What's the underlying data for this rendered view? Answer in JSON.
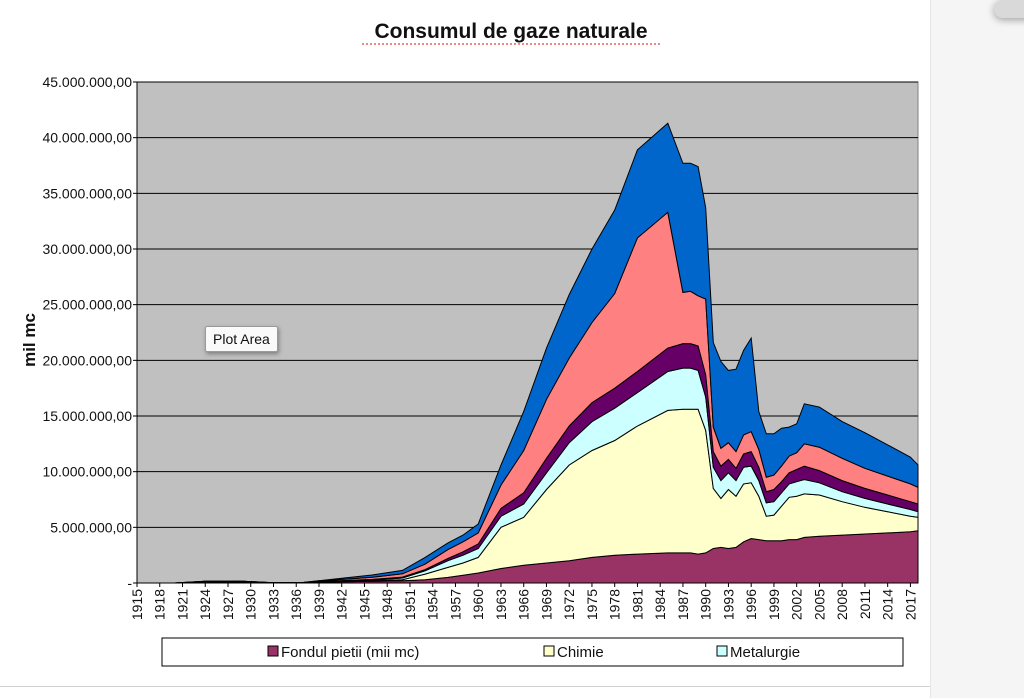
{
  "chart_data": {
    "type": "area",
    "stacked": true,
    "title": "Consumul de gaze naturale",
    "xlabel": "",
    "ylabel": "mil mc",
    "ylim": [
      0,
      45000000
    ],
    "yticks": [
      0,
      5000000,
      10000000,
      15000000,
      20000000,
      25000000,
      30000000,
      35000000,
      40000000,
      45000000
    ],
    "ytick_labels": [
      "-",
      "5.000.000,00",
      "10.000.000,00",
      "15.000.000,00",
      "20.000.000,00",
      "25.000.000,00",
      "30.000.000,00",
      "35.000.000,00",
      "40.000.000,00",
      "45.000.000,00"
    ],
    "xtick_labels": [
      "1915",
      "1918",
      "1921",
      "1924",
      "1927",
      "1930",
      "1933",
      "1936",
      "1939",
      "1942",
      "1945",
      "1948",
      "1951",
      "1954",
      "1957",
      "1960",
      "1963",
      "1966",
      "1969",
      "1972",
      "1975",
      "1978",
      "1981",
      "1984",
      "1987",
      "1990",
      "1993",
      "1996",
      "1999",
      "2002",
      "2005",
      "2008",
      "2011",
      "2014",
      "2017"
    ],
    "grid": true,
    "legend_position": "bottom",
    "plot_background": "#c0c0c0",
    "x": [
      1915,
      1920,
      1924,
      1929,
      1933,
      1937,
      1939,
      1942,
      1946,
      1950,
      1953,
      1956,
      1958,
      1960,
      1963,
      1966,
      1969,
      1972,
      1975,
      1978,
      1981,
      1985,
      1987,
      1988,
      1989,
      1990,
      1991,
      1992,
      1993,
      1994,
      1995,
      1996,
      1997,
      1998,
      1999,
      2000,
      2001,
      2002,
      2003,
      2005,
      2008,
      2011,
      2014,
      2017,
      2018
    ],
    "series": [
      {
        "name": "Fondul pietii (mii mc)",
        "color": "#993366",
        "values": [
          0,
          0,
          100000,
          100000,
          20000,
          30000,
          80000,
          120000,
          150000,
          200000,
          300000,
          500000,
          700000,
          900000,
          1300000,
          1600000,
          1800000,
          2000000,
          2300000,
          2500000,
          2600000,
          2700000,
          2700000,
          2700000,
          2600000,
          2700000,
          3100000,
          3200000,
          3100000,
          3200000,
          3700000,
          4000000,
          3900000,
          3800000,
          3800000,
          3800000,
          3900000,
          3900000,
          4100000,
          4200000,
          4300000,
          4400000,
          4500000,
          4600000,
          4700000
        ]
      },
      {
        "name": "Chimie",
        "color": "#ffffcc",
        "values": [
          0,
          0,
          0,
          0,
          0,
          0,
          10000,
          20000,
          50000,
          100000,
          500000,
          900000,
          1100000,
          1400000,
          3700000,
          4300000,
          6600000,
          8600000,
          9600000,
          10300000,
          11500000,
          12800000,
          12900000,
          12900000,
          13000000,
          11000000,
          5400000,
          4400000,
          5300000,
          4600000,
          5200000,
          5000000,
          3900000,
          2200000,
          2300000,
          3100000,
          3800000,
          3900000,
          3900000,
          3700000,
          3000000,
          2400000,
          1900000,
          1400000,
          1200000
        ]
      },
      {
        "name": "Metalurgie",
        "color": "#ccffff",
        "values": [
          0,
          0,
          0,
          0,
          0,
          0,
          20000,
          30000,
          60000,
          150000,
          300000,
          600000,
          700000,
          800000,
          1000000,
          1200000,
          1500000,
          2000000,
          2600000,
          2900000,
          3000000,
          3500000,
          3700000,
          3700000,
          3500000,
          3000000,
          1900000,
          1600000,
          1500000,
          1400000,
          1500000,
          1500000,
          1400000,
          1200000,
          1200000,
          1200000,
          1200000,
          1300000,
          1300000,
          1100000,
          900000,
          800000,
          700000,
          600000,
          500000
        ]
      },
      {
        "name": "",
        "color": "#660066",
        "values": [
          0,
          0,
          50000,
          50000,
          10000,
          20000,
          40000,
          50000,
          60000,
          80000,
          100000,
          200000,
          300000,
          400000,
          700000,
          1000000,
          1300000,
          1500000,
          1700000,
          1800000,
          1900000,
          2100000,
          2200000,
          2200000,
          2200000,
          2000000,
          1400000,
          1300000,
          1200000,
          1100000,
          1200000,
          1300000,
          1200000,
          1000000,
          1100000,
          1000000,
          1000000,
          1100000,
          1200000,
          1100000,
          1000000,
          900000,
          800000,
          700000,
          700000
        ]
      },
      {
        "name": "",
        "color": "#ff8080",
        "values": [
          0,
          0,
          0,
          0,
          0,
          0,
          50000,
          100000,
          200000,
          300000,
          500000,
          800000,
          900000,
          1000000,
          2100000,
          3800000,
          5300000,
          6100000,
          7200000,
          8500000,
          12000000,
          12200000,
          4600000,
          4700000,
          4500000,
          6800000,
          2200000,
          1600000,
          1500000,
          1500000,
          1700000,
          1800000,
          1600000,
          1300000,
          1300000,
          1400000,
          1500000,
          1500000,
          2000000,
          2100000,
          2000000,
          1800000,
          1700000,
          1600000,
          1500000
        ]
      },
      {
        "name": "",
        "color": "#0066cc",
        "values": [
          0,
          0,
          0,
          0,
          0,
          0,
          0,
          100000,
          200000,
          300000,
          600000,
          600000,
          600000,
          800000,
          1800000,
          3500000,
          4600000,
          5700000,
          6600000,
          7500000,
          7900000,
          8000000,
          11600000,
          11500000,
          11600000,
          8200000,
          7600000,
          7800000,
          6500000,
          7400000,
          7600000,
          8400000,
          3400000,
          3900000,
          3700000,
          3400000,
          2600000,
          2600000,
          3600000,
          3600000,
          3300000,
          3200000,
          2800000,
          2400000,
          2000000
        ]
      }
    ]
  },
  "legend": {
    "items": [
      {
        "label": "Fondul pietii (mii mc)",
        "color": "#993366"
      },
      {
        "label": "Chimie",
        "color": "#ffffcc"
      },
      {
        "label": "Metalurgie",
        "color": "#ccffff"
      }
    ]
  },
  "tooltip": {
    "text": "Plot Area"
  }
}
